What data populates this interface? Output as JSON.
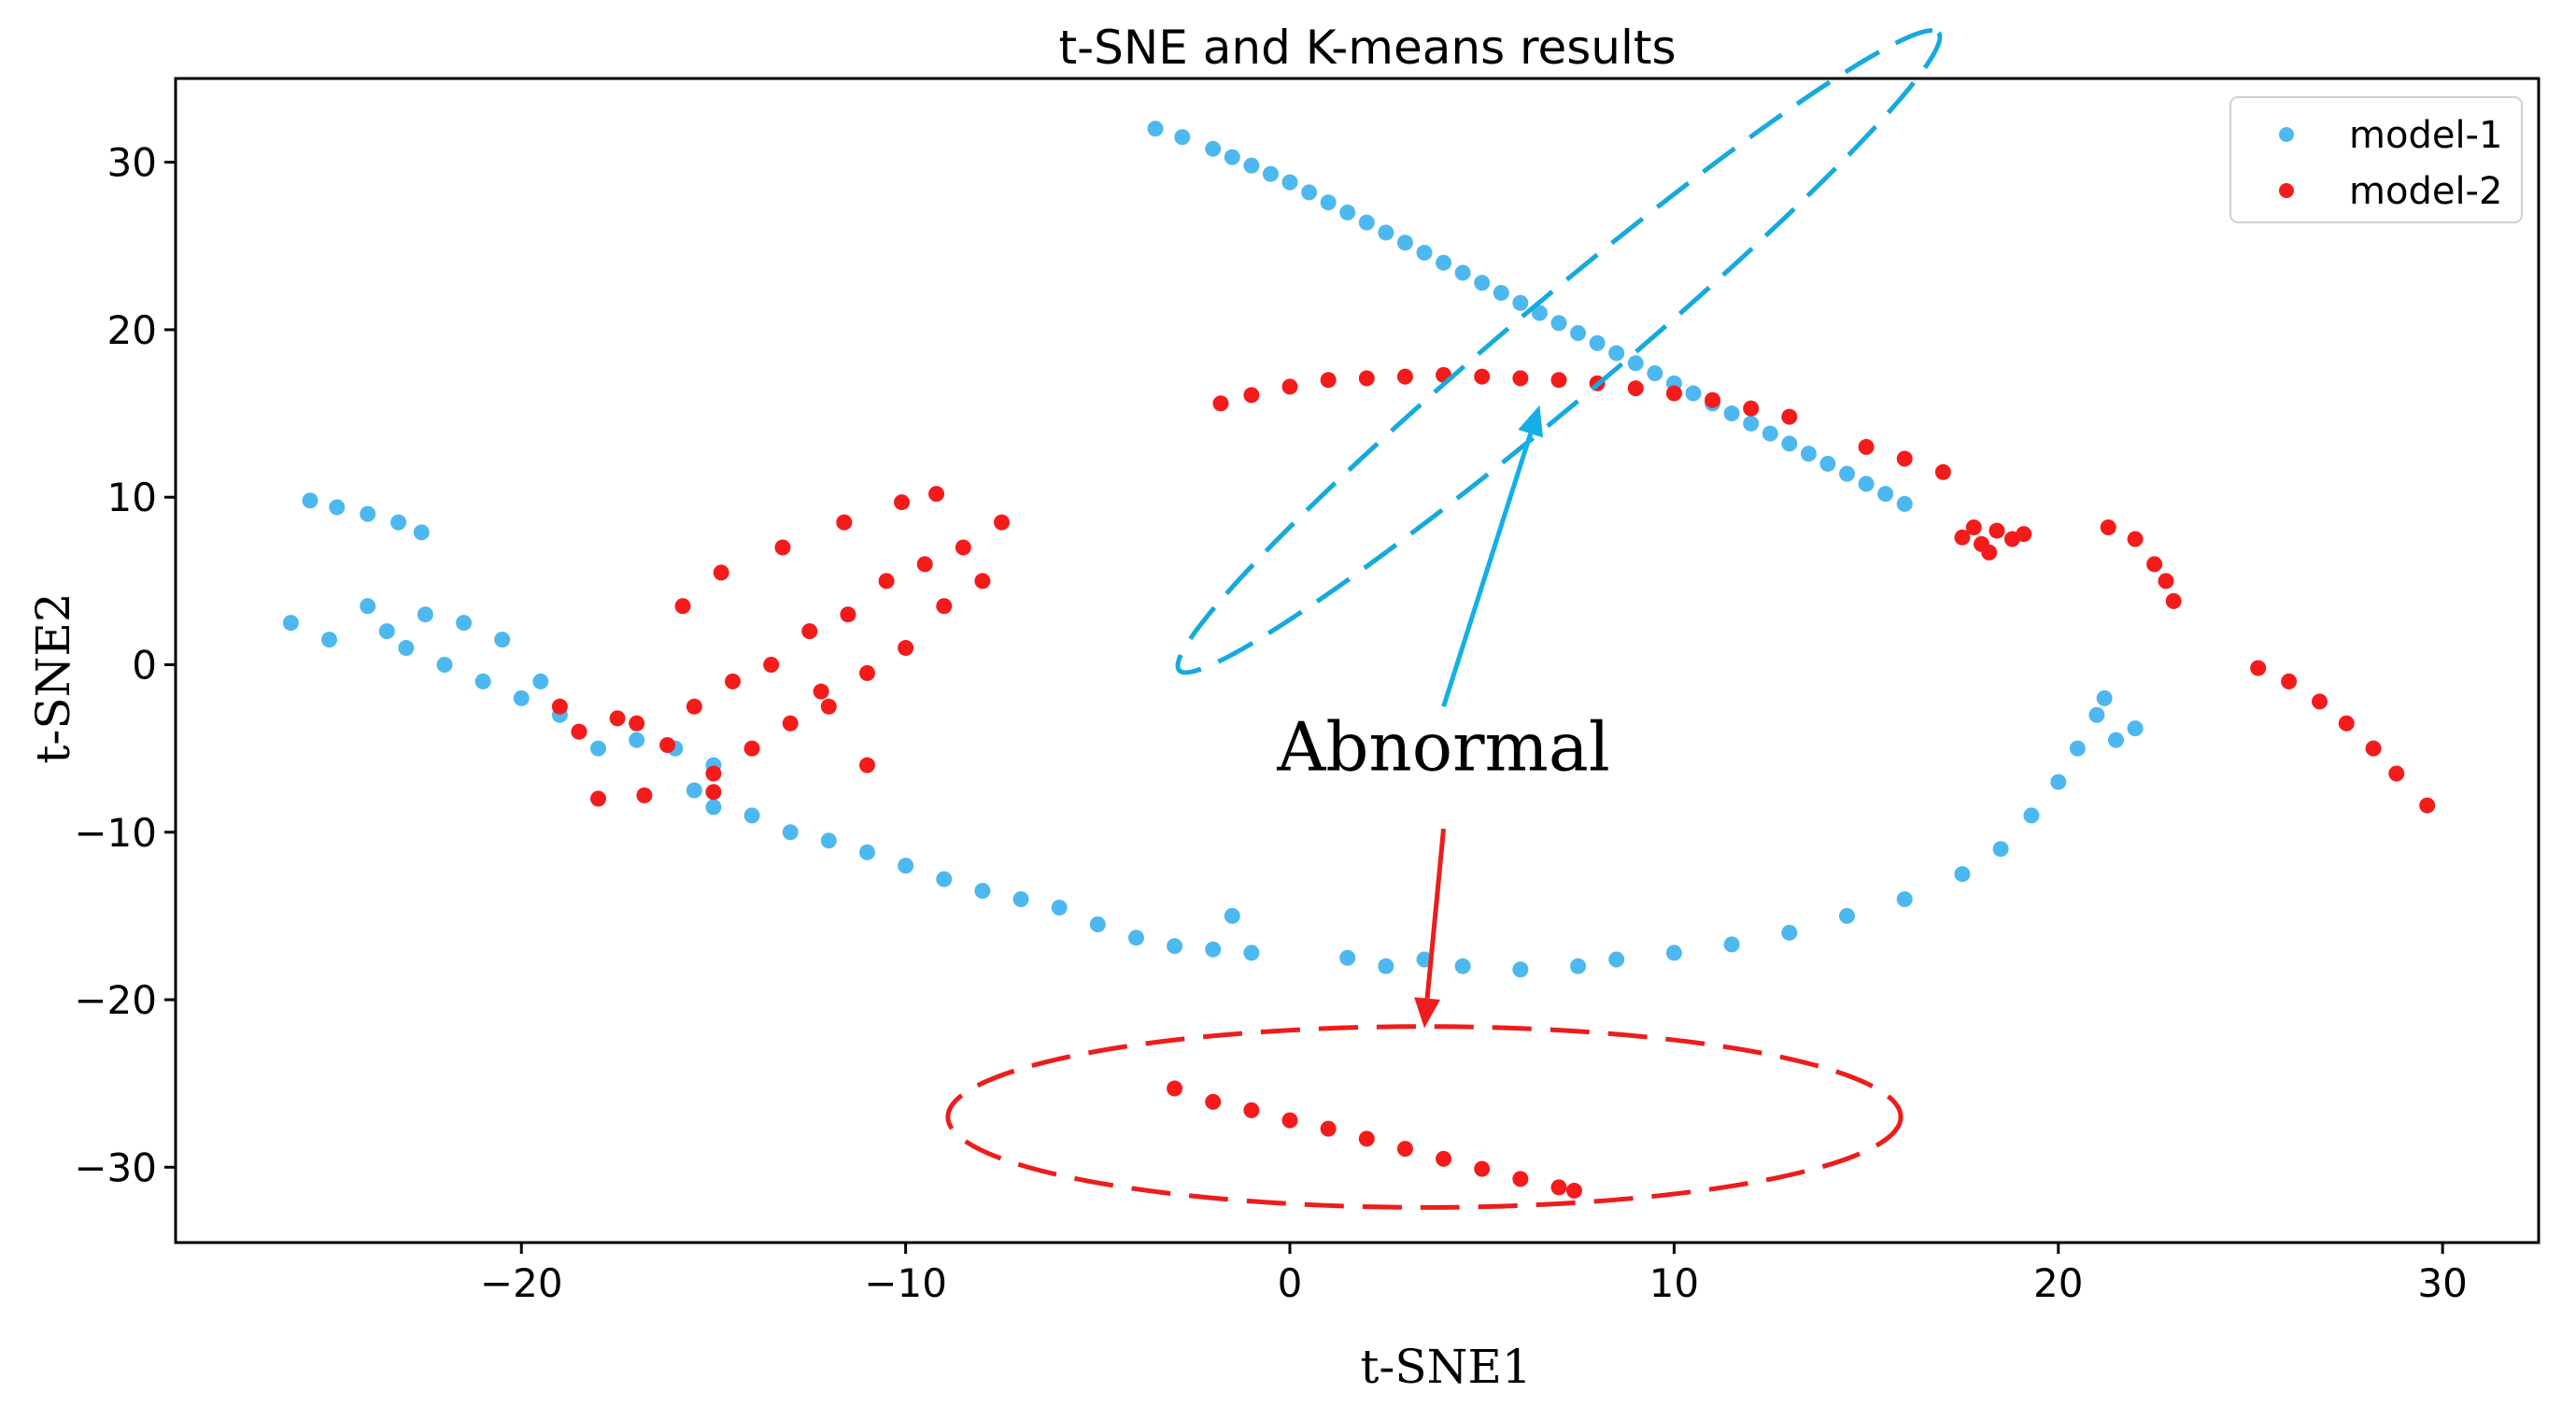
{
  "chart_data": {
    "type": "scatter",
    "title": "t-SNE and K-means results",
    "xlabel": "t-SNE1",
    "ylabel": "t-SNE2",
    "xlim": [
      -29,
      32.5
    ],
    "ylim": [
      -34.5,
      35
    ],
    "xticks": [
      -20,
      -10,
      0,
      10,
      20,
      30
    ],
    "yticks": [
      -30,
      -20,
      -10,
      0,
      10,
      20,
      30
    ],
    "xtick_labels": [
      "−20",
      "−10",
      "0",
      "10",
      "20",
      "30"
    ],
    "ytick_labels": [
      "−30",
      "−20",
      "−10",
      "0",
      "10",
      "20",
      "30"
    ],
    "grid": false,
    "legend_position": "top-right",
    "series": [
      {
        "name": "model-1",
        "color": "#4DB8F0",
        "points": [
          [
            -3.5,
            32
          ],
          [
            -2.8,
            31.5
          ],
          [
            -2,
            30.8
          ],
          [
            -1.5,
            30.3
          ],
          [
            -1,
            29.8
          ],
          [
            -0.5,
            29.3
          ],
          [
            0,
            28.8
          ],
          [
            0.5,
            28.2
          ],
          [
            1,
            27.6
          ],
          [
            1.5,
            27
          ],
          [
            2,
            26.4
          ],
          [
            2.5,
            25.8
          ],
          [
            3,
            25.2
          ],
          [
            3.5,
            24.6
          ],
          [
            4,
            24
          ],
          [
            4.5,
            23.4
          ],
          [
            5,
            22.8
          ],
          [
            5.5,
            22.2
          ],
          [
            6,
            21.6
          ],
          [
            6.5,
            21
          ],
          [
            7,
            20.4
          ],
          [
            7.5,
            19.8
          ],
          [
            8,
            19.2
          ],
          [
            8.5,
            18.6
          ],
          [
            9,
            18
          ],
          [
            9.5,
            17.4
          ],
          [
            10,
            16.8
          ],
          [
            10.5,
            16.2
          ],
          [
            11,
            15.6
          ],
          [
            11.5,
            15
          ],
          [
            12,
            14.4
          ],
          [
            12.5,
            13.8
          ],
          [
            13,
            13.2
          ],
          [
            13.5,
            12.6
          ],
          [
            14,
            12
          ],
          [
            14.5,
            11.4
          ],
          [
            15,
            10.8
          ],
          [
            15.5,
            10.2
          ],
          [
            16,
            9.6
          ],
          [
            -25.5,
            9.8
          ],
          [
            -24.8,
            9.4
          ],
          [
            -24,
            9
          ],
          [
            -23.2,
            8.5
          ],
          [
            -22.6,
            7.9
          ],
          [
            -26,
            2.5
          ],
          [
            -25,
            1.5
          ],
          [
            -24,
            3.5
          ],
          [
            -23.5,
            2
          ],
          [
            -23,
            1
          ],
          [
            -22.5,
            3
          ],
          [
            -22,
            0
          ],
          [
            -21.5,
            2.5
          ],
          [
            -21,
            -1
          ],
          [
            -20.5,
            1.5
          ],
          [
            -20,
            -2
          ],
          [
            -19.5,
            -1
          ],
          [
            -19,
            -3
          ],
          [
            -18.5,
            -4
          ],
          [
            -18,
            -5
          ],
          [
            -17,
            -4.5
          ],
          [
            -16,
            -5
          ],
          [
            -15,
            -6
          ],
          [
            -15.5,
            -7.5
          ],
          [
            -15,
            -8.5
          ],
          [
            -14,
            -9
          ],
          [
            -13,
            -10
          ],
          [
            -12,
            -10.5
          ],
          [
            -11,
            -11.2
          ],
          [
            -10,
            -12
          ],
          [
            -9,
            -12.8
          ],
          [
            -8,
            -13.5
          ],
          [
            -7,
            -14
          ],
          [
            -6,
            -14.5
          ],
          [
            -5,
            -15.5
          ],
          [
            -4,
            -16.3
          ],
          [
            -3,
            -16.8
          ],
          [
            -2,
            -17
          ],
          [
            -1,
            -17.2
          ],
          [
            -1.5,
            -15
          ],
          [
            1.5,
            -17.5
          ],
          [
            2.5,
            -18
          ],
          [
            3.5,
            -17.6
          ],
          [
            4.5,
            -18
          ],
          [
            6,
            -18.2
          ],
          [
            7.5,
            -18
          ],
          [
            8.5,
            -17.6
          ],
          [
            10,
            -17.2
          ],
          [
            11.5,
            -16.7
          ],
          [
            13,
            -16
          ],
          [
            14.5,
            -15
          ],
          [
            16,
            -14
          ],
          [
            17.5,
            -12.5
          ],
          [
            18.5,
            -11
          ],
          [
            19.3,
            -9
          ],
          [
            20,
            -7
          ],
          [
            20.5,
            -5
          ],
          [
            21,
            -3
          ],
          [
            21.5,
            -4.5
          ],
          [
            22,
            -3.8
          ],
          [
            21.2,
            -2
          ]
        ]
      },
      {
        "name": "model-2",
        "color": "#F51B1B",
        "points": [
          [
            -1.8,
            15.6
          ],
          [
            -1,
            16.1
          ],
          [
            0,
            16.6
          ],
          [
            1,
            17
          ],
          [
            2,
            17.1
          ],
          [
            3,
            17.2
          ],
          [
            4,
            17.3
          ],
          [
            5,
            17.2
          ],
          [
            6,
            17.1
          ],
          [
            7,
            17
          ],
          [
            8,
            16.8
          ],
          [
            9,
            16.5
          ],
          [
            10,
            16.2
          ],
          [
            11,
            15.8
          ],
          [
            12,
            15.3
          ],
          [
            13,
            14.8
          ],
          [
            15,
            13
          ],
          [
            16,
            12.3
          ],
          [
            17,
            11.5
          ],
          [
            17.5,
            7.6
          ],
          [
            18,
            7.2
          ],
          [
            18.4,
            8
          ],
          [
            18.8,
            7.5
          ],
          [
            19.1,
            7.8
          ],
          [
            18.2,
            6.7
          ],
          [
            17.8,
            8.2
          ],
          [
            21.3,
            8.2
          ],
          [
            22,
            7.5
          ],
          [
            22.5,
            6
          ],
          [
            22.8,
            5
          ],
          [
            23,
            3.8
          ],
          [
            25.2,
            -0.2
          ],
          [
            26,
            -1
          ],
          [
            26.8,
            -2.2
          ],
          [
            27.5,
            -3.5
          ],
          [
            28.2,
            -5
          ],
          [
            28.8,
            -6.5
          ],
          [
            29.6,
            -8.4
          ],
          [
            -19,
            -2.5
          ],
          [
            -18.5,
            -4
          ],
          [
            -17.5,
            -3.2
          ],
          [
            -17,
            -3.5
          ],
          [
            -16.2,
            -4.8
          ],
          [
            -15.5,
            -2.5
          ],
          [
            -14.5,
            -1
          ],
          [
            -13.5,
            0
          ],
          [
            -12.5,
            2
          ],
          [
            -11.5,
            3
          ],
          [
            -10.5,
            5
          ],
          [
            -9.5,
            6
          ],
          [
            -8.5,
            7
          ],
          [
            -7.5,
            8.5
          ],
          [
            -8,
            5
          ],
          [
            -9,
            3.5
          ],
          [
            -10,
            1
          ],
          [
            -11,
            -0.5
          ],
          [
            -12,
            -2.5
          ],
          [
            -13,
            -3.5
          ],
          [
            -14,
            -5
          ],
          [
            -15,
            -6.5
          ],
          [
            -15.8,
            3.5
          ],
          [
            -14.8,
            5.5
          ],
          [
            -13.2,
            7
          ],
          [
            -11.6,
            8.5
          ],
          [
            -10.1,
            9.7
          ],
          [
            -9.2,
            10.2
          ],
          [
            -18,
            -8
          ],
          [
            -16.8,
            -7.8
          ],
          [
            -15,
            -7.6
          ],
          [
            -11,
            -6
          ],
          [
            -12.2,
            -1.6
          ],
          [
            -3,
            -25.3
          ],
          [
            -2,
            -26.1
          ],
          [
            -1,
            -26.6
          ],
          [
            0,
            -27.2
          ],
          [
            1,
            -27.7
          ],
          [
            2,
            -28.3
          ],
          [
            3,
            -28.9
          ],
          [
            4,
            -29.5
          ],
          [
            5,
            -30.1
          ],
          [
            6,
            -30.7
          ],
          [
            7,
            -31.2
          ],
          [
            7.4,
            -31.4
          ]
        ]
      }
    ],
    "annotations": {
      "label": "Abnormal",
      "label_position": [
        4,
        -6.3
      ],
      "arrow_up_to": [
        6.5,
        15.5
      ],
      "arrow_down_to": [
        3.5,
        -21.7
      ],
      "ellipse_upper": {
        "center": [
          7,
          18.7
        ],
        "semi_axes_data": [
          12.9,
          3.0
        ],
        "angle_deg": -40,
        "color": "#15AADE"
      },
      "ellipse_lower": {
        "center": [
          3.5,
          -27
        ],
        "semi_axes_data": [
          12.4,
          5.4
        ],
        "angle_deg": 0,
        "color": "#EE1C1C"
      }
    }
  }
}
